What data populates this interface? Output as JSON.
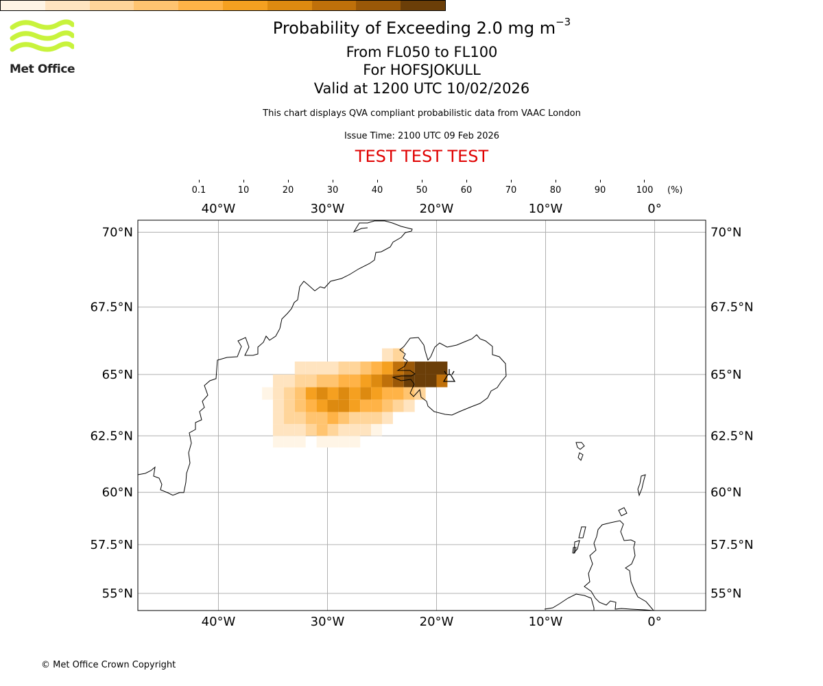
{
  "header": {
    "title_prefix": "Probability of Exceeding 2.0 mg m",
    "title_exponent": "−3",
    "level_range": "From FL050 to FL100",
    "volcano": "For HOFSJOKULL",
    "valid_time": "Valid at 1200 UTC 10/02/2026",
    "subtitle": "This chart displays QVA compliant probabilistic data from VAAC London",
    "issue_time": "Issue Time: 2100 UTC 09 Feb 2026",
    "test_banner": "TEST TEST TEST"
  },
  "logo": {
    "text": "Met Office",
    "color": "#c8f33c"
  },
  "colorbar": {
    "unit": "(%)",
    "ticks": [
      "0.1",
      "10",
      "20",
      "30",
      "40",
      "50",
      "60",
      "70",
      "80",
      "90",
      "100"
    ],
    "colors": [
      "#fff5e6",
      "#ffe4c0",
      "#ffd59a",
      "#ffc470",
      "#ffb347",
      "#f5a020",
      "#dd8a10",
      "#bf700a",
      "#9a5808",
      "#6b3e08"
    ]
  },
  "map": {
    "lon_ticks": [
      -40,
      -30,
      -20,
      -10,
      0
    ],
    "lat_ticks": [
      70,
      67.5,
      65,
      62.5,
      60,
      57.5,
      55
    ],
    "lon_labels": [
      "40°W",
      "30°W",
      "20°W",
      "10°W",
      "0°"
    ],
    "lat_labels": [
      "70°N",
      "67.5°N",
      "65°N",
      "62.5°N",
      "60°N",
      "57.5°N",
      "55°N"
    ],
    "source_symbol": "volcano-marker",
    "ash_cells": [
      [
        -34.5,
        62.25,
        5
      ],
      [
        -33.5,
        62.25,
        5
      ],
      [
        -32.5,
        62.25,
        5
      ],
      [
        -30.5,
        62.25,
        5
      ],
      [
        -29.5,
        62.25,
        5
      ],
      [
        -28.5,
        62.25,
        5
      ],
      [
        -27.5,
        62.25,
        5
      ],
      [
        -34.5,
        62.75,
        15
      ],
      [
        -33.5,
        62.75,
        15
      ],
      [
        -32.5,
        62.75,
        15
      ],
      [
        -31.5,
        62.75,
        25
      ],
      [
        -30.5,
        62.75,
        35
      ],
      [
        -29.5,
        62.75,
        25
      ],
      [
        -28.5,
        62.75,
        15
      ],
      [
        -27.5,
        62.75,
        15
      ],
      [
        -26.5,
        62.75,
        15
      ],
      [
        -25.5,
        62.75,
        5
      ],
      [
        -34.5,
        63.25,
        15
      ],
      [
        -33.5,
        63.25,
        25
      ],
      [
        -32.5,
        63.25,
        25
      ],
      [
        -31.5,
        63.25,
        35
      ],
      [
        -30.5,
        63.25,
        35
      ],
      [
        -29.5,
        63.25,
        45
      ],
      [
        -28.5,
        63.25,
        35
      ],
      [
        -27.5,
        63.25,
        25
      ],
      [
        -26.5,
        63.25,
        25
      ],
      [
        -25.5,
        63.25,
        25
      ],
      [
        -24.5,
        63.25,
        15
      ],
      [
        -34.5,
        63.75,
        15
      ],
      [
        -33.5,
        63.75,
        25
      ],
      [
        -32.5,
        63.75,
        35
      ],
      [
        -31.5,
        63.75,
        45
      ],
      [
        -30.5,
        63.75,
        55
      ],
      [
        -29.5,
        63.75,
        65
      ],
      [
        -28.5,
        63.75,
        65
      ],
      [
        -27.5,
        63.75,
        55
      ],
      [
        -26.5,
        63.75,
        45
      ],
      [
        -25.5,
        63.75,
        45
      ],
      [
        -24.5,
        63.75,
        35
      ],
      [
        -23.5,
        63.75,
        25
      ],
      [
        -22.5,
        63.75,
        15
      ],
      [
        -35.5,
        64.25,
        5
      ],
      [
        -34.5,
        64.25,
        15
      ],
      [
        -33.5,
        64.25,
        25
      ],
      [
        -32.5,
        64.25,
        35
      ],
      [
        -31.5,
        64.25,
        55
      ],
      [
        -30.5,
        64.25,
        65
      ],
      [
        -29.5,
        64.25,
        55
      ],
      [
        -28.5,
        64.25,
        65
      ],
      [
        -27.5,
        64.25,
        55
      ],
      [
        -26.5,
        64.25,
        65
      ],
      [
        -25.5,
        64.25,
        55
      ],
      [
        -24.5,
        64.25,
        45
      ],
      [
        -23.5,
        64.25,
        45
      ],
      [
        -22.5,
        64.25,
        35
      ],
      [
        -21.5,
        64.25,
        25
      ],
      [
        -34.5,
        64.75,
        15
      ],
      [
        -33.5,
        64.75,
        15
      ],
      [
        -32.5,
        64.75,
        25
      ],
      [
        -31.5,
        64.75,
        25
      ],
      [
        -30.5,
        64.75,
        35
      ],
      [
        -29.5,
        64.75,
        35
      ],
      [
        -28.5,
        64.75,
        45
      ],
      [
        -27.5,
        64.75,
        45
      ],
      [
        -26.5,
        64.75,
        55
      ],
      [
        -25.5,
        64.75,
        65
      ],
      [
        -24.5,
        64.75,
        75
      ],
      [
        -23.5,
        64.75,
        85
      ],
      [
        -22.5,
        64.75,
        95
      ],
      [
        -21.5,
        64.75,
        95
      ],
      [
        -20.5,
        64.75,
        95
      ],
      [
        -19.5,
        64.75,
        75
      ],
      [
        -32.5,
        65.25,
        15
      ],
      [
        -31.5,
        65.25,
        15
      ],
      [
        -30.5,
        65.25,
        15
      ],
      [
        -29.5,
        65.25,
        15
      ],
      [
        -28.5,
        65.25,
        25
      ],
      [
        -27.5,
        65.25,
        25
      ],
      [
        -26.5,
        65.25,
        35
      ],
      [
        -25.5,
        65.25,
        45
      ],
      [
        -24.5,
        65.25,
        55
      ],
      [
        -23.5,
        65.25,
        75
      ],
      [
        -22.5,
        65.25,
        85
      ],
      [
        -21.5,
        65.25,
        95
      ],
      [
        -20.5,
        65.25,
        95
      ],
      [
        -19.5,
        65.25,
        95
      ],
      [
        -24.5,
        65.75,
        15
      ],
      [
        -23.5,
        65.75,
        25
      ]
    ]
  }
}
